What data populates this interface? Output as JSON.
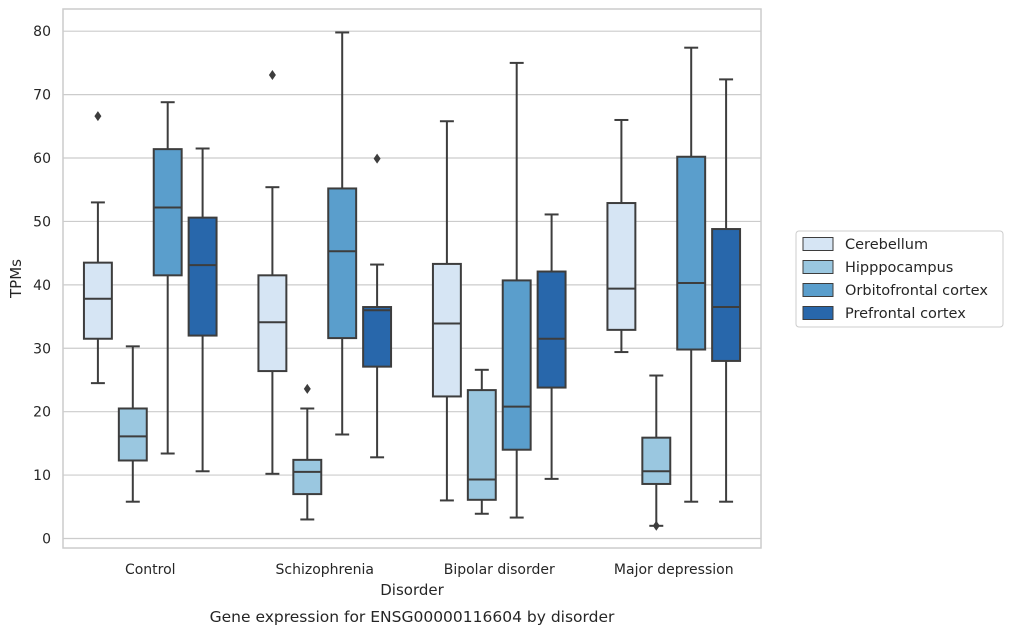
{
  "chart_data": {
    "type": "box",
    "xlabel": "Disorder",
    "ylabel": "TPMs",
    "caption": "Gene expression for ENSG00000116604 by disorder",
    "ylim": [
      -1.5,
      83.5
    ],
    "yticks": [
      0,
      10,
      20,
      30,
      40,
      50,
      60,
      70,
      80
    ],
    "grid": "horizontal",
    "legend_placement": "center-right-outside",
    "categories": [
      "Control",
      "Schizophrenia",
      "Bipolar disorder",
      "Major depression"
    ],
    "series": [
      {
        "name": "Cerebellum",
        "color": "#d6e5f4",
        "boxes": [
          {
            "whislo": 24.5,
            "q1": 31.5,
            "med": 37.8,
            "q3": 43.5,
            "whishi": 53.0,
            "fliers": [
              66.6
            ]
          },
          {
            "whislo": 10.2,
            "q1": 26.4,
            "med": 34.1,
            "q3": 41.5,
            "whishi": 55.4,
            "fliers": [
              73.1
            ]
          },
          {
            "whislo": 6.0,
            "q1": 22.4,
            "med": 33.9,
            "q3": 43.3,
            "whishi": 65.8,
            "fliers": []
          },
          {
            "whislo": 29.4,
            "q1": 32.9,
            "med": 39.4,
            "q3": 52.9,
            "whishi": 66.0,
            "fliers": []
          }
        ]
      },
      {
        "name": "Hipppocampus",
        "color": "#9ac7e0",
        "boxes": [
          {
            "whislo": 5.8,
            "q1": 12.3,
            "med": 16.1,
            "q3": 20.5,
            "whishi": 30.3,
            "fliers": []
          },
          {
            "whislo": 3.0,
            "q1": 7.0,
            "med": 10.5,
            "q3": 12.4,
            "whishi": 20.5,
            "fliers": [
              23.6
            ]
          },
          {
            "whislo": 3.9,
            "q1": 6.1,
            "med": 9.3,
            "q3": 23.4,
            "whishi": 26.6,
            "fliers": []
          },
          {
            "whislo": 2.0,
            "q1": 8.6,
            "med": 10.6,
            "q3": 15.9,
            "whishi": 25.7,
            "fliers": [
              2.0
            ]
          }
        ]
      },
      {
        "name": "Orbitofrontal cortex",
        "color": "#5a9ecc",
        "boxes": [
          {
            "whislo": 13.4,
            "q1": 41.5,
            "med": 52.2,
            "q3": 61.4,
            "whishi": 68.8,
            "fliers": []
          },
          {
            "whislo": 16.4,
            "q1": 31.6,
            "med": 45.3,
            "q3": 55.2,
            "whishi": 79.8,
            "fliers": []
          },
          {
            "whislo": 3.3,
            "q1": 14.0,
            "med": 20.8,
            "q3": 40.7,
            "whishi": 75.0,
            "fliers": []
          },
          {
            "whislo": 5.8,
            "q1": 29.8,
            "med": 40.3,
            "q3": 60.2,
            "whishi": 77.4,
            "fliers": []
          }
        ]
      },
      {
        "name": "Prefrontal cortex",
        "color": "#2867ab",
        "boxes": [
          {
            "whislo": 10.6,
            "q1": 32.0,
            "med": 43.1,
            "q3": 50.6,
            "whishi": 61.5,
            "fliers": []
          },
          {
            "whislo": 12.8,
            "q1": 27.1,
            "med": 36.0,
            "q3": 36.5,
            "whishi": 43.2,
            "fliers": [
              59.9
            ]
          },
          {
            "whislo": 9.4,
            "q1": 23.8,
            "med": 31.5,
            "q3": 42.1,
            "whishi": 51.1,
            "fliers": []
          },
          {
            "whislo": 5.8,
            "q1": 28.0,
            "med": 36.5,
            "q3": 48.8,
            "whishi": 72.4,
            "fliers": []
          }
        ]
      }
    ]
  }
}
